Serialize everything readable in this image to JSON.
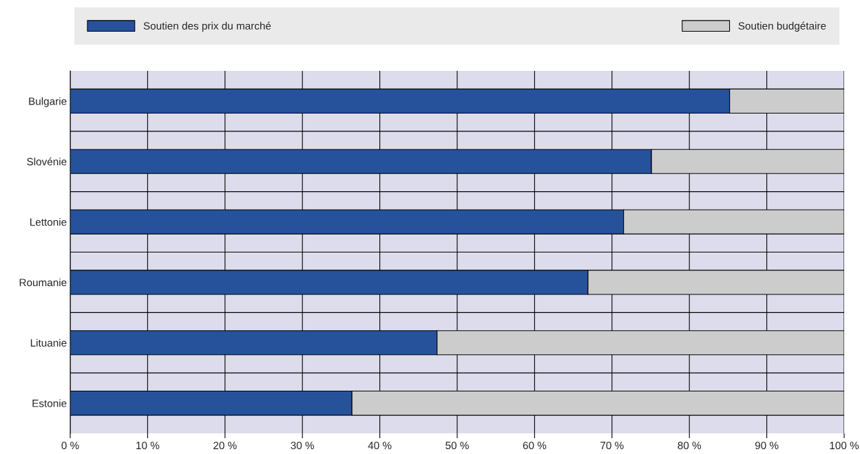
{
  "chart_data": {
    "type": "bar",
    "orientation": "horizontal",
    "stacked": true,
    "categories": [
      "Bulgarie",
      "Slovénie",
      "Lettonie",
      "Roumanie",
      "Lituanie",
      "Estonie"
    ],
    "series": [
      {
        "name": "Soutien des prix du marché",
        "color": "#26529c",
        "values": [
          85.2,
          75.1,
          71.5,
          66.9,
          47.4,
          36.4
        ]
      },
      {
        "name": "Soutien budgétaire",
        "color": "#cccccc",
        "values": [
          14.8,
          24.9,
          28.5,
          33.1,
          52.6,
          63.6
        ]
      }
    ],
    "xlim": [
      0,
      100
    ],
    "xticks": [
      {
        "value": 0,
        "label": "0 %"
      },
      {
        "value": 10,
        "label": "10 %"
      },
      {
        "value": 20,
        "label": "20 %"
      },
      {
        "value": 30,
        "label": "30 %"
      },
      {
        "value": 40,
        "label": "40 %"
      },
      {
        "value": 50,
        "label": "50 %"
      },
      {
        "value": 60,
        "label": "60 %"
      },
      {
        "value": 70,
        "label": "70 %"
      },
      {
        "value": 80,
        "label": "80 %"
      },
      {
        "value": 90,
        "label": "90 %"
      },
      {
        "value": 100,
        "label": "100 %"
      }
    ],
    "grid": true,
    "legend": "top"
  }
}
